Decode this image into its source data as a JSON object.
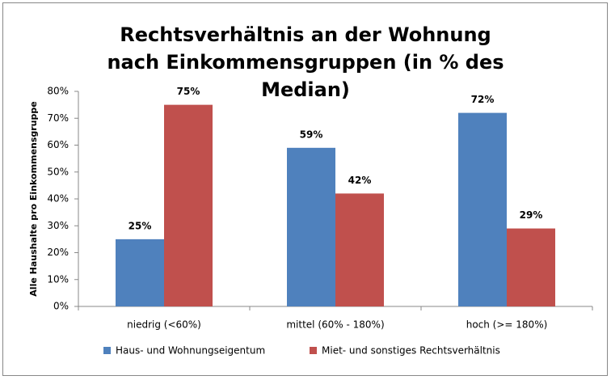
{
  "chart_data": {
    "type": "bar",
    "title": "Rechtsverhältnis an der Wohnung nach Einkommensgruppen (in % des Median)",
    "y_label": "Alle Haushalte pro Einkommensgruppe",
    "categories": [
      "niedrig (<60%)",
      "mittel (60% - 180%)",
      "hoch (>= 180%)"
    ],
    "series": [
      {
        "name": "Haus- und Wohnungseigentum",
        "color": "#4f81bd",
        "values": [
          25,
          59,
          72
        ],
        "value_labels": [
          "25%",
          "59%",
          "72%"
        ]
      },
      {
        "name": "Miet- und sonstiges Rechtsverhältnis",
        "color": "#c0504d",
        "values": [
          75,
          42,
          29
        ],
        "value_labels": [
          "75%",
          "42%",
          "29%"
        ]
      }
    ],
    "ylim": [
      0,
      80
    ],
    "yticks": [
      {
        "value": 0,
        "label": "0%"
      },
      {
        "value": 10,
        "label": "10%"
      },
      {
        "value": 20,
        "label": "20%"
      },
      {
        "value": 30,
        "label": "30%"
      },
      {
        "value": 40,
        "label": "40%"
      },
      {
        "value": 50,
        "label": "50%"
      },
      {
        "value": 60,
        "label": "60%"
      },
      {
        "value": 70,
        "label": "70%"
      },
      {
        "value": 80,
        "label": "80%"
      }
    ],
    "grid": false,
    "legend": "bottom"
  }
}
